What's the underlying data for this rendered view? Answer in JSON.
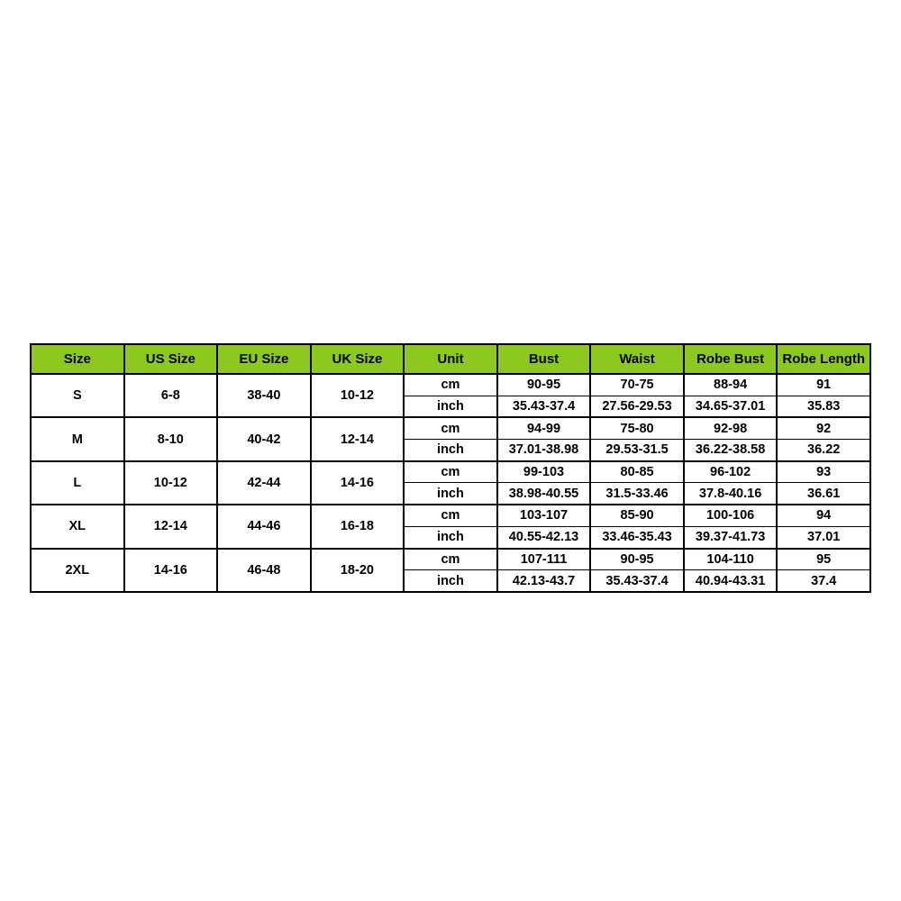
{
  "page": {
    "background_color": "#ffffff"
  },
  "style": {
    "header_bg_color": "#8dc821",
    "border_color": "#000000",
    "text_color": "#000000"
  },
  "chart_data": {
    "type": "table",
    "columns": [
      "Size",
      "US Size",
      "EU Size",
      "UK Size",
      "Unit",
      "Bust",
      "Waist",
      "Robe Bust",
      "Robe Length"
    ],
    "rows": [
      {
        "size": "S",
        "us_size": "6-8",
        "eu_size": "38-40",
        "uk_size": "10-12",
        "measurements": [
          {
            "unit": "cm",
            "bust": "90-95",
            "waist": "70-75",
            "robe_bust": "88-94",
            "robe_length": "91"
          },
          {
            "unit": "inch",
            "bust": "35.43-37.4",
            "waist": "27.56-29.53",
            "robe_bust": "34.65-37.01",
            "robe_length": "35.83"
          }
        ]
      },
      {
        "size": "M",
        "us_size": "8-10",
        "eu_size": "40-42",
        "uk_size": "12-14",
        "measurements": [
          {
            "unit": "cm",
            "bust": "94-99",
            "waist": "75-80",
            "robe_bust": "92-98",
            "robe_length": "92"
          },
          {
            "unit": "inch",
            "bust": "37.01-38.98",
            "waist": "29.53-31.5",
            "robe_bust": "36.22-38.58",
            "robe_length": "36.22"
          }
        ]
      },
      {
        "size": "L",
        "us_size": "10-12",
        "eu_size": "42-44",
        "uk_size": "14-16",
        "measurements": [
          {
            "unit": "cm",
            "bust": "99-103",
            "waist": "80-85",
            "robe_bust": "96-102",
            "robe_length": "93"
          },
          {
            "unit": "inch",
            "bust": "38.98-40.55",
            "waist": "31.5-33.46",
            "robe_bust": "37.8-40.16",
            "robe_length": "36.61"
          }
        ]
      },
      {
        "size": "XL",
        "us_size": "12-14",
        "eu_size": "44-46",
        "uk_size": "16-18",
        "measurements": [
          {
            "unit": "cm",
            "bust": "103-107",
            "waist": "85-90",
            "robe_bust": "100-106",
            "robe_length": "94"
          },
          {
            "unit": "inch",
            "bust": "40.55-42.13",
            "waist": "33.46-35.43",
            "robe_bust": "39.37-41.73",
            "robe_length": "37.01"
          }
        ]
      },
      {
        "size": "2XL",
        "us_size": "14-16",
        "eu_size": "46-48",
        "uk_size": "18-20",
        "measurements": [
          {
            "unit": "cm",
            "bust": "107-111",
            "waist": "90-95",
            "robe_bust": "104-110",
            "robe_length": "95"
          },
          {
            "unit": "inch",
            "bust": "42.13-43.7",
            "waist": "35.43-37.4",
            "robe_bust": "40.94-43.31",
            "robe_length": "37.4"
          }
        ]
      }
    ]
  }
}
